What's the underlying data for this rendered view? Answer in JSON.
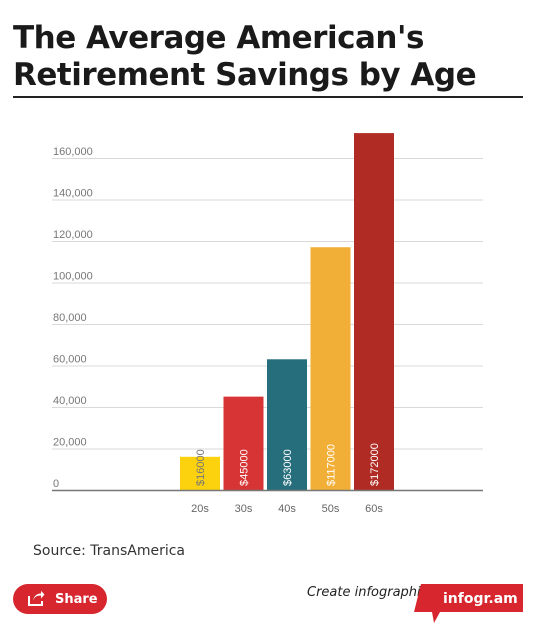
{
  "header": {
    "title_line1": "The Average American's",
    "title_line2": "Retirement Savings by Age"
  },
  "chart_data": {
    "type": "bar",
    "categories": [
      "20s",
      "30s",
      "40s",
      "50s",
      "60s"
    ],
    "values": [
      16000,
      45000,
      63000,
      117000,
      172000
    ],
    "value_labels": [
      "$16000",
      "$45000",
      "$63000",
      "$117000",
      "$172000"
    ],
    "colors": [
      "#fcd10d",
      "#d73535",
      "#266e7c",
      "#f2af37",
      "#b02b24"
    ],
    "label_colors": [
      "#777777",
      "#ffffff",
      "#ffffff",
      "#ffffff",
      "#ffffff"
    ],
    "yticks": [
      0,
      20000,
      40000,
      60000,
      80000,
      100000,
      120000,
      140000,
      160000
    ],
    "ytick_labels": [
      "0",
      "20,000",
      "40,000",
      "60,000",
      "80,000",
      "100,000",
      "120,000",
      "140,000",
      "160,000"
    ],
    "ylim": [
      0,
      172000
    ],
    "grid": true,
    "title": "The Average American's Retirement Savings by Age",
    "xlabel": "",
    "ylabel": ""
  },
  "footer": {
    "source": "Source: TransAmerica",
    "share_label": "Share",
    "create_text": "Create infographics",
    "brand": "infogr.am",
    "brand_color": "#d8262f"
  }
}
